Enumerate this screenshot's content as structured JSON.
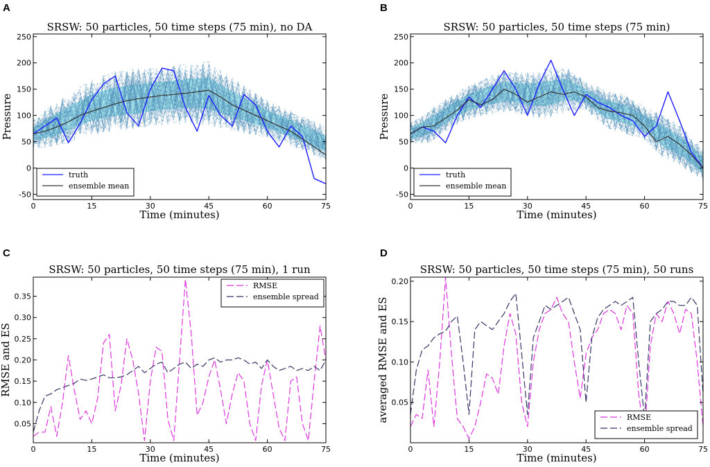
{
  "chart_data": [
    {
      "id": "A",
      "panel_label": "A",
      "type": "line",
      "title": "SRSW: 50 particles, 50 time steps (75 min), no DA",
      "xlabel": "Time (minutes)",
      "ylabel": "Pressure",
      "xlim": [
        0,
        75
      ],
      "ylim": [
        -60,
        255
      ],
      "xticks": [
        0,
        15,
        30,
        45,
        60,
        75
      ],
      "yticks": [
        -50,
        0,
        50,
        100,
        150,
        200,
        250
      ],
      "legend": {
        "position": "bottom-left",
        "entries": [
          "truth",
          "ensemble mean"
        ]
      },
      "band": {
        "name": "ensemble spread band",
        "x": [
          0,
          5,
          10,
          15,
          20,
          25,
          30,
          35,
          40,
          45,
          50,
          55,
          60,
          65,
          70,
          75
        ],
        "lower": [
          52,
          60,
          75,
          90,
          98,
          102,
          108,
          112,
          115,
          112,
          100,
          88,
          76,
          62,
          48,
          30
        ],
        "upper": [
          78,
          100,
          120,
          140,
          152,
          158,
          162,
          165,
          170,
          172,
          150,
          130,
          110,
          95,
          78,
          62
        ]
      },
      "series": [
        {
          "name": "truth",
          "color": "#1a1aff",
          "x": [
            0,
            3,
            6,
            9,
            12,
            15,
            18,
            21,
            24,
            27,
            30,
            33,
            36,
            39,
            42,
            45,
            48,
            51,
            54,
            57,
            60,
            63,
            66,
            69,
            72,
            75
          ],
          "values": [
            65,
            80,
            95,
            48,
            85,
            130,
            160,
            175,
            105,
            80,
            150,
            190,
            185,
            115,
            70,
            138,
            100,
            80,
            140,
            120,
            70,
            40,
            80,
            60,
            -20,
            -30
          ]
        },
        {
          "name": "ensemble mean",
          "color": "#333333",
          "x": [
            0,
            3,
            6,
            9,
            12,
            15,
            18,
            21,
            24,
            27,
            30,
            33,
            36,
            39,
            42,
            45,
            48,
            51,
            54,
            57,
            60,
            63,
            66,
            69,
            72,
            75
          ],
          "values": [
            65,
            70,
            78,
            88,
            100,
            108,
            115,
            122,
            128,
            132,
            135,
            138,
            140,
            142,
            145,
            148,
            135,
            120,
            110,
            100,
            90,
            80,
            70,
            55,
            40,
            25
          ]
        }
      ]
    },
    {
      "id": "B",
      "panel_label": "B",
      "type": "line",
      "title": "SRSW: 50 particles, 50 time steps (75 min)",
      "xlabel": "Time (minutes)",
      "ylabel": "Pressure",
      "xlim": [
        0,
        75
      ],
      "ylim": [
        -60,
        255
      ],
      "xticks": [
        0,
        15,
        30,
        45,
        60,
        75
      ],
      "yticks": [
        -50,
        0,
        50,
        100,
        150,
        200,
        250
      ],
      "legend": {
        "position": "bottom-left",
        "entries": [
          "truth",
          "ensemble mean"
        ]
      },
      "band": {
        "name": "ensemble spread band",
        "x": [
          0,
          5,
          10,
          15,
          20,
          25,
          30,
          35,
          40,
          45,
          50,
          55,
          60,
          65,
          70,
          75
        ],
        "lower": [
          55,
          65,
          90,
          110,
          120,
          128,
          120,
          118,
          130,
          125,
          95,
          85,
          70,
          40,
          20,
          -10
        ],
        "upper": [
          75,
          95,
          120,
          140,
          155,
          165,
          160,
          165,
          170,
          150,
          130,
          120,
          100,
          80,
          55,
          20
        ]
      },
      "series": [
        {
          "name": "truth",
          "color": "#1a1aff",
          "x": [
            0,
            3,
            6,
            9,
            12,
            15,
            18,
            21,
            24,
            27,
            30,
            33,
            36,
            39,
            42,
            45,
            48,
            51,
            54,
            57,
            60,
            63,
            66,
            69,
            72,
            75
          ],
          "values": [
            65,
            78,
            70,
            48,
            100,
            135,
            115,
            150,
            185,
            150,
            100,
            160,
            205,
            150,
            100,
            140,
            125,
            115,
            100,
            90,
            60,
            80,
            145,
            90,
            30,
            0
          ]
        },
        {
          "name": "ensemble mean",
          "color": "#333333",
          "x": [
            0,
            3,
            6,
            9,
            12,
            15,
            18,
            21,
            24,
            27,
            30,
            33,
            36,
            39,
            42,
            45,
            48,
            51,
            54,
            57,
            60,
            63,
            66,
            69,
            72,
            75
          ],
          "values": [
            65,
            78,
            80,
            95,
            110,
            130,
            120,
            130,
            150,
            140,
            125,
            135,
            145,
            140,
            145,
            135,
            115,
            108,
            105,
            100,
            80,
            50,
            60,
            45,
            25,
            0
          ]
        }
      ]
    },
    {
      "id": "C",
      "panel_label": "C",
      "type": "line",
      "title": "SRSW: 50 particles, 50 time steps (75 min), 1 run",
      "xlabel": "Time (minutes)",
      "ylabel": "RMSE and ES",
      "xlim": [
        0,
        75
      ],
      "ylim": [
        0.005,
        0.395
      ],
      "xticks": [
        0,
        15,
        30,
        45,
        60,
        75
      ],
      "yticks": [
        0.05,
        0.1,
        0.15,
        0.2,
        0.25,
        0.3,
        0.35
      ],
      "legend": {
        "position": "top-right",
        "entries": [
          "RMSE",
          "ensemble spread"
        ]
      },
      "series": [
        {
          "name": "RMSE",
          "color": "#dd33dd",
          "x": [
            0,
            1.5,
            3,
            4.5,
            6,
            7.5,
            9,
            10.5,
            12,
            13.5,
            15,
            16.5,
            18,
            19.5,
            21,
            22.5,
            24,
            25.5,
            27,
            28.5,
            30,
            31.5,
            33,
            34.5,
            36,
            37.5,
            39,
            40.5,
            42,
            43.5,
            45,
            46.5,
            48,
            49.5,
            51,
            52.5,
            54,
            55.5,
            57,
            58.5,
            60,
            61.5,
            63,
            64.5,
            66,
            67.5,
            69,
            70.5,
            72,
            73.5,
            75
          ],
          "values": [
            0.02,
            0.03,
            0.03,
            0.09,
            0.02,
            0.1,
            0.21,
            0.13,
            0.06,
            0.08,
            0.05,
            0.11,
            0.24,
            0.26,
            0.08,
            0.14,
            0.25,
            0.2,
            0.12,
            0.01,
            0.15,
            0.23,
            0.22,
            0.06,
            0.01,
            0.2,
            0.39,
            0.26,
            0.07,
            0.1,
            0.16,
            0.2,
            0.13,
            0.05,
            0.12,
            0.17,
            0.15,
            0.05,
            0.01,
            0.14,
            0.2,
            0.12,
            0.04,
            0.01,
            0.15,
            0.16,
            0.05,
            0.01,
            0.15,
            0.28,
            0.2
          ]
        },
        {
          "name": "ensemble spread",
          "color": "#333366",
          "x": [
            0,
            1.5,
            3,
            4.5,
            6,
            7.5,
            9,
            10.5,
            12,
            13.5,
            15,
            16.5,
            18,
            19.5,
            21,
            22.5,
            24,
            25.5,
            27,
            28.5,
            30,
            31.5,
            33,
            34.5,
            36,
            37.5,
            39,
            40.5,
            42,
            43.5,
            45,
            46.5,
            48,
            49.5,
            51,
            52.5,
            54,
            55.5,
            57,
            58.5,
            60,
            61.5,
            63,
            64.5,
            66,
            67.5,
            69,
            70.5,
            72,
            73.5,
            75
          ],
          "values": [
            0.03,
            0.08,
            0.115,
            0.12,
            0.13,
            0.135,
            0.14,
            0.145,
            0.155,
            0.152,
            0.155,
            0.16,
            0.165,
            0.158,
            0.158,
            0.16,
            0.165,
            0.175,
            0.185,
            0.17,
            0.18,
            0.19,
            0.195,
            0.17,
            0.18,
            0.19,
            0.195,
            0.18,
            0.19,
            0.185,
            0.2,
            0.205,
            0.195,
            0.2,
            0.2,
            0.205,
            0.2,
            0.19,
            0.195,
            0.18,
            0.2,
            0.185,
            0.175,
            0.18,
            0.185,
            0.175,
            0.18,
            0.175,
            0.185,
            0.175,
            0.2
          ]
        }
      ]
    },
    {
      "id": "D",
      "panel_label": "D",
      "type": "line",
      "title": "SRSW: 50 particles, 50 time steps (75 min), 50 runs",
      "xlabel": "Time (minutes)",
      "ylabel": "averaged RMSE and ES",
      "xlim": [
        0,
        75
      ],
      "ylim": [
        0,
        0.205
      ],
      "xticks": [
        0,
        15,
        30,
        45,
        60,
        75
      ],
      "yticks": [
        0.05,
        0.1,
        0.15,
        0.2
      ],
      "legend": {
        "position": "bottom-right",
        "entries": [
          "RMSE",
          "ensemble spread"
        ]
      },
      "series": [
        {
          "name": "RMSE",
          "color": "#dd33dd",
          "x": [
            0,
            1.5,
            3,
            4.5,
            6,
            7.5,
            9,
            10.5,
            12,
            13.5,
            15,
            16.5,
            18,
            19.5,
            21,
            22.5,
            24,
            25.5,
            27,
            28.5,
            30,
            31.5,
            33,
            34.5,
            36,
            37.5,
            39,
            40.5,
            42,
            43.5,
            45,
            46.5,
            48,
            49.5,
            51,
            52.5,
            54,
            55.5,
            57,
            58.5,
            60,
            61.5,
            63,
            64.5,
            66,
            67.5,
            69,
            70.5,
            72,
            73.5,
            75
          ],
          "values": [
            0.02,
            0.035,
            0.03,
            0.09,
            0.02,
            0.1,
            0.205,
            0.11,
            0.03,
            0.02,
            0.005,
            0.02,
            0.05,
            0.085,
            0.08,
            0.06,
            0.12,
            0.16,
            0.135,
            0.05,
            0.02,
            0.1,
            0.14,
            0.16,
            0.165,
            0.18,
            0.16,
            0.15,
            0.1,
            0.055,
            0.11,
            0.13,
            0.14,
            0.16,
            0.165,
            0.16,
            0.14,
            0.17,
            0.16,
            0.06,
            0.01,
            0.12,
            0.16,
            0.15,
            0.175,
            0.16,
            0.135,
            0.165,
            0.16,
            0.1,
            0.02
          ]
        },
        {
          "name": "ensemble spread",
          "color": "#333366",
          "x": [
            0,
            1.5,
            3,
            4.5,
            6,
            7.5,
            9,
            10.5,
            12,
            13.5,
            15,
            16.5,
            18,
            19.5,
            21,
            22.5,
            24,
            25.5,
            27,
            28.5,
            30,
            31.5,
            33,
            34.5,
            36,
            37.5,
            39,
            40.5,
            42,
            43.5,
            45,
            46.5,
            48,
            49.5,
            51,
            52.5,
            54,
            55.5,
            57,
            58.5,
            60,
            61.5,
            63,
            64.5,
            66,
            67.5,
            69,
            70.5,
            72,
            73.5,
            75
          ],
          "values": [
            0.035,
            0.09,
            0.115,
            0.12,
            0.13,
            0.135,
            0.138,
            0.15,
            0.157,
            0.1,
            0.035,
            0.14,
            0.15,
            0.145,
            0.14,
            0.15,
            0.16,
            0.175,
            0.185,
            0.11,
            0.035,
            0.13,
            0.15,
            0.17,
            0.165,
            0.17,
            0.175,
            0.18,
            0.16,
            0.14,
            0.05,
            0.13,
            0.155,
            0.165,
            0.17,
            0.175,
            0.17,
            0.175,
            0.18,
            0.1,
            0.03,
            0.15,
            0.16,
            0.165,
            0.175,
            0.175,
            0.17,
            0.17,
            0.18,
            0.17,
            0.06
          ]
        }
      ]
    }
  ]
}
